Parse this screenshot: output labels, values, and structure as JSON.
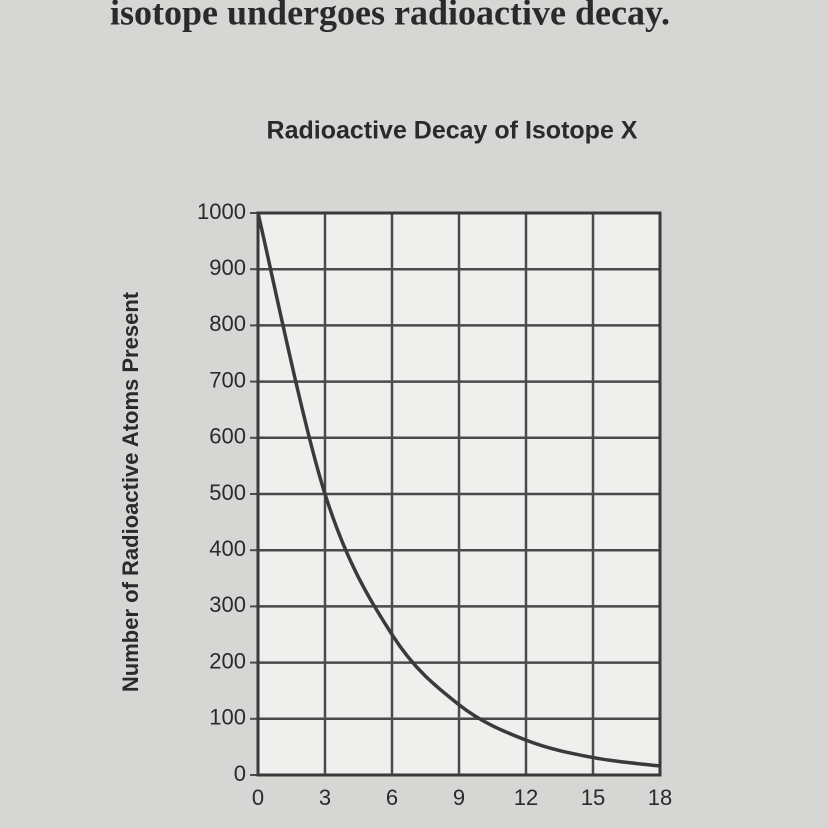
{
  "header": "isotope undergoes radioactive decay.",
  "chart_data": {
    "type": "line",
    "title": "Radioactive Decay of Isotope X",
    "y_label": "Number of Radioactive Atoms Present",
    "x": [
      0,
      3,
      6,
      9,
      12,
      15,
      18
    ],
    "series": [
      {
        "name": "Isotope X",
        "color": "#3a3a3a",
        "values": [
          1000,
          500,
          250,
          125,
          62,
          31,
          16
        ]
      }
    ],
    "xlim": [
      0,
      18
    ],
    "xticks": [
      0,
      3,
      6,
      9,
      12,
      15,
      18
    ],
    "ylim": [
      0,
      1000
    ],
    "yticks": [
      0,
      100,
      200,
      300,
      400,
      500,
      600,
      700,
      800,
      900,
      1000
    ],
    "grid": true
  }
}
